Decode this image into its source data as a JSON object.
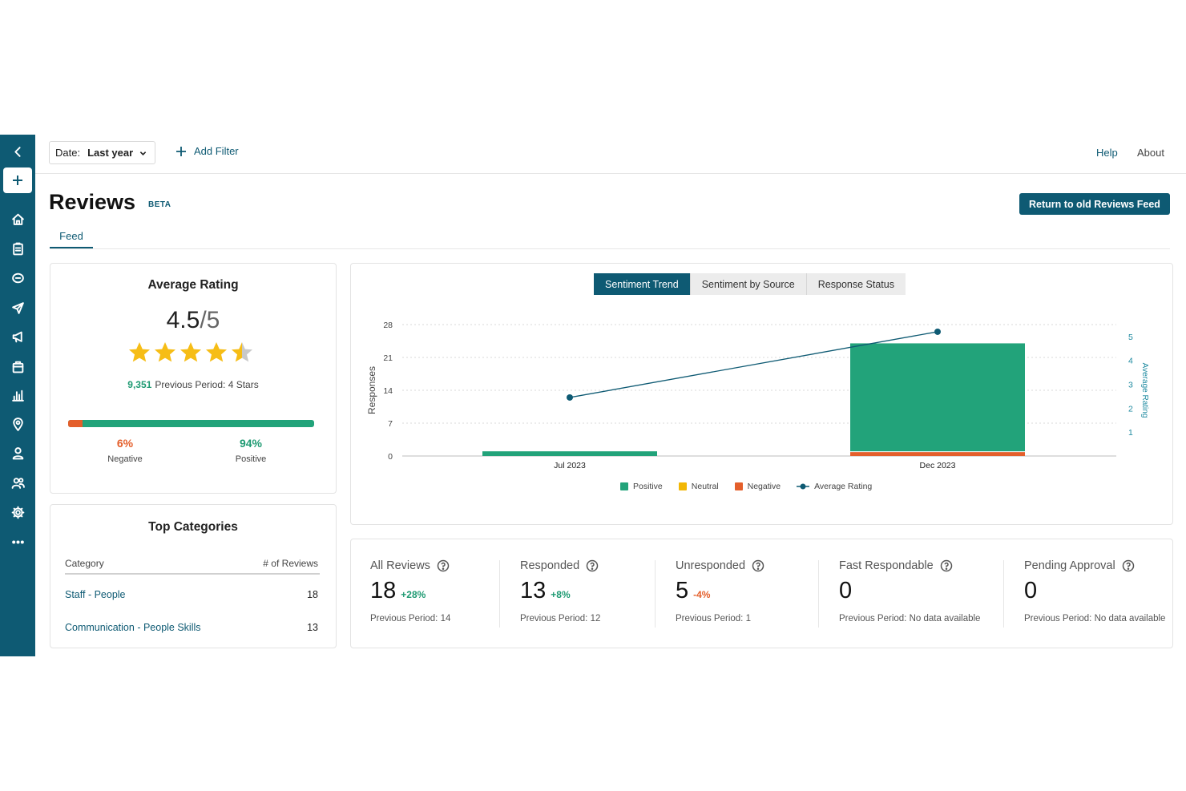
{
  "topbar": {
    "date_label": "Date:",
    "date_value": "Last year",
    "add_filter": "Add Filter",
    "help": "Help",
    "about": "About"
  },
  "header": {
    "title": "Reviews",
    "badge": "BETA",
    "return_button": "Return to old Reviews Feed",
    "tabs": [
      {
        "label": "Feed",
        "active": true
      }
    ]
  },
  "average_rating": {
    "title": "Average Rating",
    "score": "4.5",
    "out_of": "/5",
    "stars": 4.5,
    "review_count": "9,351",
    "previous_period": "Previous Period: 4 Stars",
    "negative_pct": "6%",
    "negative_label": "Negative",
    "positive_pct": "94%",
    "positive_label": "Positive",
    "negative_fraction": 0.06,
    "colors": {
      "negative": "#e45f2b",
      "positive": "#22a37a",
      "star": "#f6bd16"
    }
  },
  "top_categories": {
    "title": "Top Categories",
    "columns": [
      "Category",
      "# of Reviews"
    ],
    "rows": [
      {
        "name": "Staff - People",
        "count": "18"
      },
      {
        "name": "Communication - People Skills",
        "count": "13"
      }
    ]
  },
  "chart_tabs": [
    {
      "label": "Sentiment Trend",
      "active": true
    },
    {
      "label": "Sentiment by Source",
      "active": false
    },
    {
      "label": "Response Status",
      "active": false
    }
  ],
  "chart_data": {
    "type": "bar",
    "categories": [
      "Jul 2023",
      "Dec 2023"
    ],
    "series": [
      {
        "name": "Positive",
        "values": [
          1,
          23
        ],
        "color": "#22a37a"
      },
      {
        "name": "Neutral",
        "values": [
          0,
          0
        ],
        "color": "#f2b705"
      },
      {
        "name": "Negative",
        "values": [
          0,
          1
        ],
        "color": "#e45f2b"
      },
      {
        "name": "Average Rating",
        "type": "line",
        "axis": "right",
        "values": [
          2.45,
          5.2
        ],
        "color": "#0e5a73"
      }
    ],
    "ylabel": "Responses",
    "y2label": "Average Rating",
    "yticks": [
      0,
      7,
      14,
      21,
      28
    ],
    "y2ticks": [
      1,
      2,
      3,
      4,
      5
    ],
    "ylim": [
      0,
      28
    ],
    "y2lim": [
      0,
      5.5
    ],
    "grid": true,
    "legend_position": "bottom"
  },
  "stats": [
    {
      "label": "All Reviews",
      "value": "18",
      "delta": "+28%",
      "delta_color": "#1e9a72",
      "previous": "Previous Period: 14"
    },
    {
      "label": "Responded",
      "value": "13",
      "delta": "+8%",
      "delta_color": "#1e9a72",
      "previous": "Previous Period: 12"
    },
    {
      "label": "Unresponded",
      "value": "5",
      "delta": "-4%",
      "delta_color": "#e45f2b",
      "previous": "Previous Period: 1"
    },
    {
      "label": "Fast Respondable",
      "value": "0",
      "delta": "",
      "delta_color": "#1e9a72",
      "previous": "Previous Period: No data available"
    },
    {
      "label": "Pending Approval",
      "value": "0",
      "delta": "",
      "delta_color": "#1e9a72",
      "previous": "Previous Period: No data available"
    }
  ],
  "sidebar": {
    "icons": [
      "collapse-icon",
      "plus-icon",
      "home-icon",
      "clipboard-icon",
      "chat-icon",
      "send-icon",
      "megaphone-icon",
      "bag-icon",
      "bar-chart-icon",
      "location-pin-icon",
      "user-icon",
      "users-icon",
      "gear-icon",
      "more-icon"
    ]
  }
}
